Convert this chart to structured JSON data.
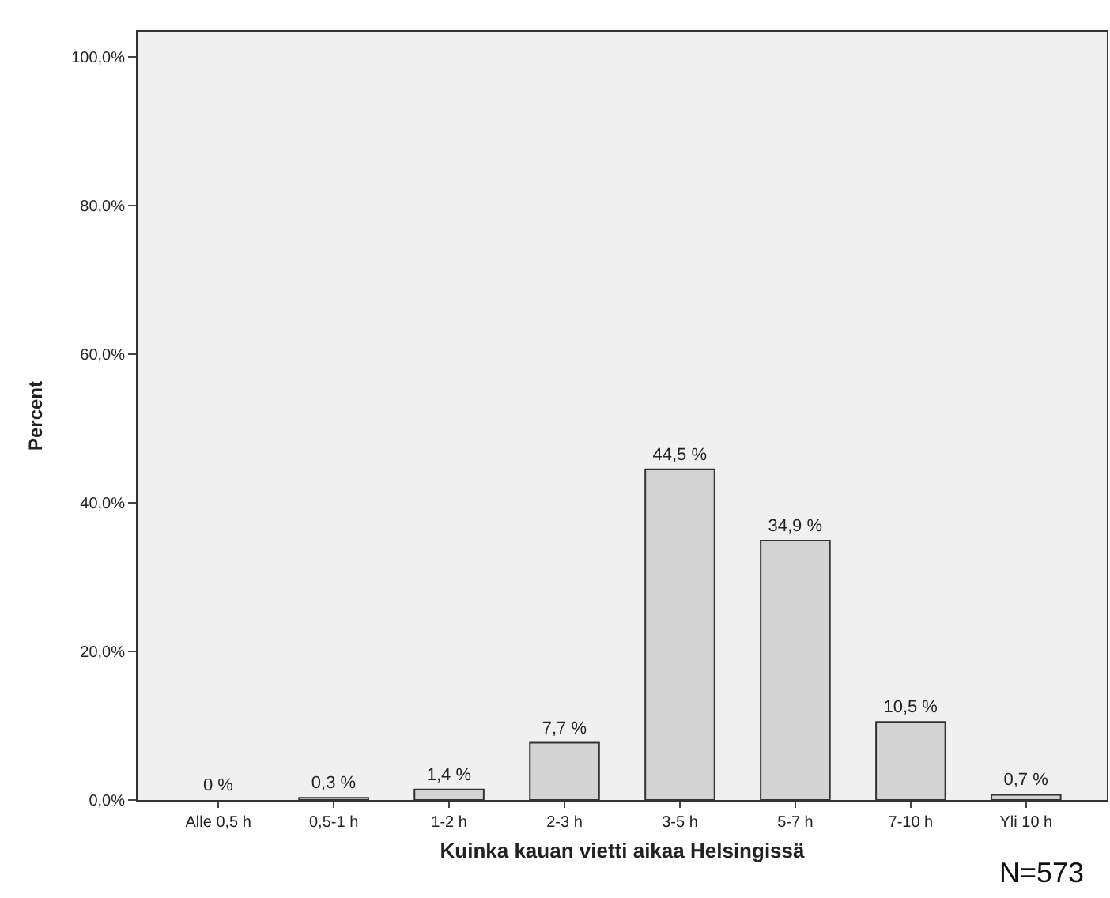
{
  "chart_data": {
    "type": "bar",
    "xlabel": "Kuinka kauan vietti aikaa Helsingissä",
    "ylabel": "Percent",
    "categories": [
      "Alle 0,5 h",
      "0,5-1 h",
      "1-2 h",
      "2-3 h",
      "3-5 h",
      "5-7 h",
      "7-10 h",
      "Yli 10 h"
    ],
    "values": [
      0,
      0.3,
      1.4,
      7.7,
      44.5,
      34.9,
      10.5,
      0.7
    ],
    "value_labels": [
      "0 %",
      "0,3 %",
      "1,4 %",
      "7,7 %",
      "44,5 %",
      "34,9 %",
      "10,5 %",
      "0,7 %"
    ],
    "color": "#d3d3d3",
    "ylim": [
      0,
      103.4
    ],
    "yticks": [
      {
        "value": 0,
        "label": "0,0%"
      },
      {
        "value": 20,
        "label": "20,0%"
      },
      {
        "value": 40,
        "label": "40,0%"
      },
      {
        "value": 60,
        "label": "60,0%"
      },
      {
        "value": 80,
        "label": "80,0%"
      },
      {
        "value": 100,
        "label": "100,0%"
      }
    ],
    "grid": false,
    "legend": false,
    "annotations": [
      "N=573"
    ]
  }
}
